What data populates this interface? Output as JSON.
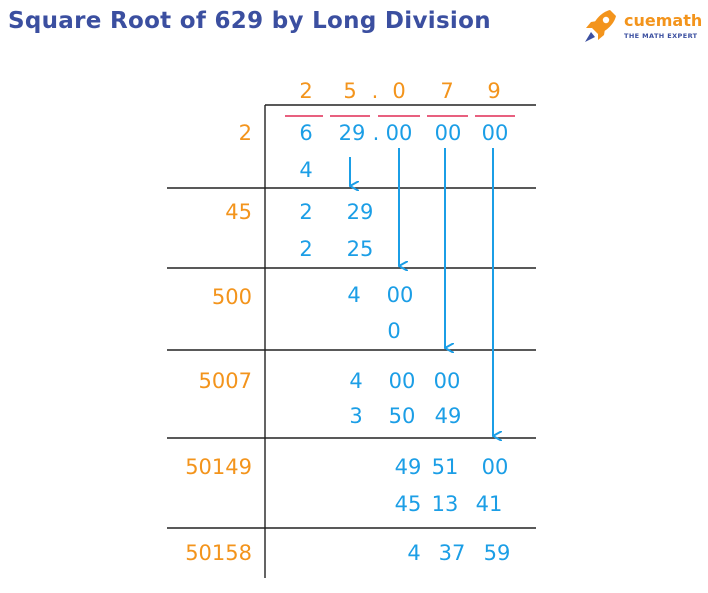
{
  "title": "Square Root of 629 by Long Division",
  "logo": {
    "brand": "cuemath",
    "tagline": "THE MATH EXPERT"
  },
  "colors": {
    "title": "#3b4fa0",
    "quotient": "#f3941c",
    "divisor": "#f3941c",
    "work": "#1b9ee6",
    "lines": "#222222",
    "bars": "#e8607f"
  },
  "quotient": [
    "2",
    "5",
    ".",
    "0",
    "7",
    "9"
  ],
  "dividend": {
    "groups": [
      "6",
      "29",
      "00",
      "00",
      "00"
    ],
    "decimal_point": "."
  },
  "steps": [
    {
      "divisor": "2",
      "subtract": [
        "4"
      ]
    },
    {
      "divisor": "45",
      "dividend": [
        "2",
        "29"
      ],
      "subtract": [
        "2",
        "25"
      ]
    },
    {
      "divisor": "500",
      "dividend": [
        "4",
        "00"
      ],
      "subtract": [
        "0"
      ]
    },
    {
      "divisor": "5007",
      "dividend": [
        "4",
        "00",
        "00"
      ],
      "subtract": [
        "3",
        "50",
        "49"
      ]
    },
    {
      "divisor": "50149",
      "dividend": [
        "49",
        "51",
        "00"
      ],
      "subtract": [
        "45",
        "13",
        "41"
      ]
    },
    {
      "divisor": "50158",
      "dividend": [
        "4",
        "37",
        "59"
      ]
    }
  ],
  "icons": [
    "rocket-icon",
    "arrow-down-icon"
  ]
}
